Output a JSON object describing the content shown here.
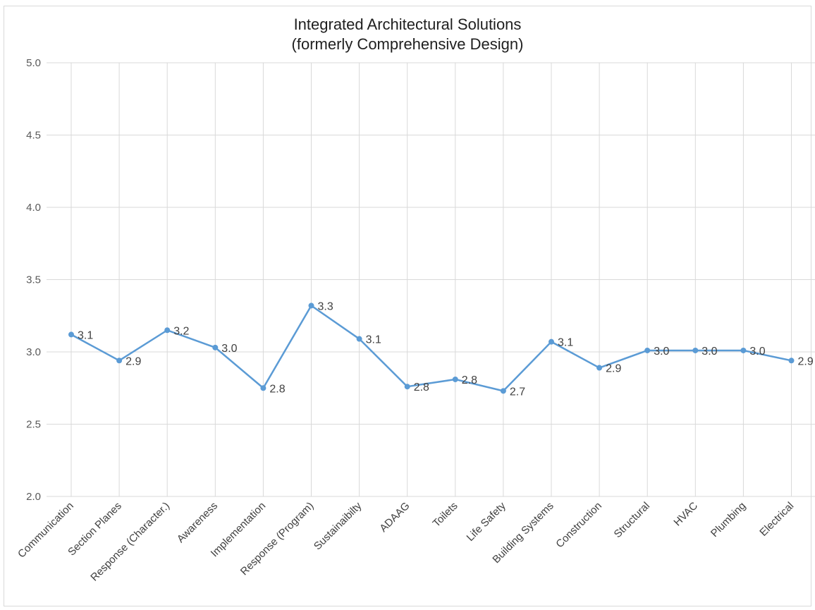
{
  "chart_data": {
    "type": "line",
    "title_lines": [
      "Integrated Architectural Solutions",
      "(formerly Comprehensive Design)"
    ],
    "xlabel": "",
    "ylabel": "",
    "categories": [
      "Communication",
      "Section Planes",
      "Response (Character.)",
      "Awareness",
      "Implementation",
      "Response (Program)",
      "Sustainaibilty",
      "ADAAG",
      "Toilets",
      "Life Safety",
      "Building Systems",
      "Construction",
      "Structural",
      "HVAC",
      "Plumbing",
      "Electrical"
    ],
    "series": [
      {
        "values": [
          3.12,
          2.94,
          3.15,
          3.03,
          2.75,
          3.32,
          3.09,
          2.76,
          2.81,
          2.73,
          3.07,
          2.89,
          3.01,
          3.01,
          3.01,
          2.94
        ],
        "labels": [
          "3.1",
          "2.9",
          "3.2",
          "3.0",
          "2.8",
          "3.3",
          "3.1",
          "2.8",
          "2.8",
          "2.7",
          "3.1",
          "2.9",
          "3.0",
          "3.0",
          "3.0",
          "2.9"
        ],
        "color": "#5b9bd5"
      }
    ],
    "yticks": [
      "2.0",
      "2.5",
      "3.0",
      "3.5",
      "4.0",
      "4.5",
      "5.0"
    ],
    "ylim": [
      2.0,
      5.0
    ],
    "grid": true,
    "legend": "none",
    "colors": {
      "line": "#5b9bd5",
      "grid": "#d9d9d9"
    }
  }
}
